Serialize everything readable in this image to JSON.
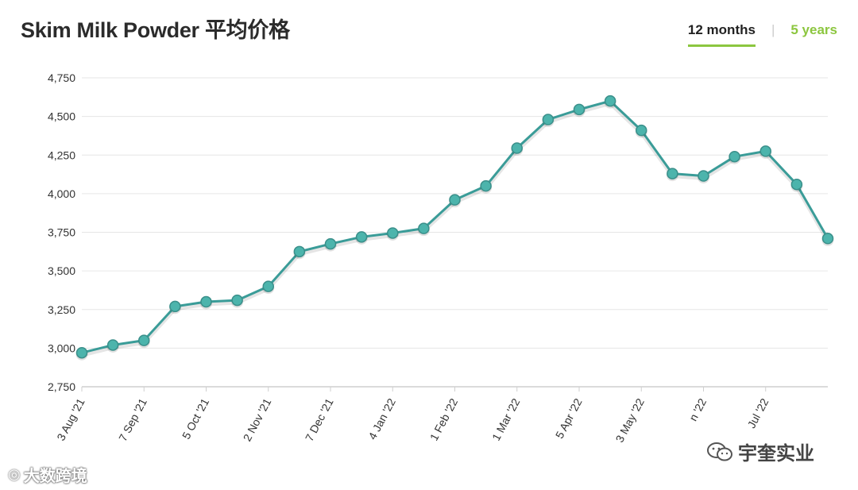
{
  "title": "Skim Milk Powder 平均价格",
  "toggle": {
    "active": "12 months",
    "other": "5 years"
  },
  "watermarks": {
    "left": "大数跨境",
    "right": "宇奎实业",
    "left_icon": "weibo-logo-icon",
    "right_icon": "wechat-logo-icon"
  },
  "colors": {
    "line": "#3a9c98",
    "marker": "#4cb4ac",
    "marker_stroke": "#3a8f8a",
    "grid": "#e6e6e6",
    "accent": "#8cc63f"
  },
  "chart_data": {
    "type": "line",
    "title": "Skim Milk Powder 平均价格",
    "xlabel": "",
    "ylabel": "",
    "ylim": [
      2750,
      4750
    ],
    "yticks": [
      "2,750",
      "3,000",
      "3,250",
      "3,500",
      "3,750",
      "4,000",
      "4,250",
      "4,500",
      "4,750"
    ],
    "ytick_values": [
      2750,
      3000,
      3250,
      3500,
      3750,
      4000,
      4250,
      4500,
      4750
    ],
    "xtick_labels": [
      "3 Aug '21",
      "7 Sep '21",
      "5 Oct '21",
      "2 Nov '21",
      "7 Dec '21",
      "4 Jan '22",
      "1 Feb '22",
      "1 Mar '22",
      "5 Apr '22",
      "3 May '22",
      "n '22",
      "Jul '22"
    ],
    "xtick_index": [
      0,
      2,
      4,
      6,
      8,
      10,
      12,
      14,
      16,
      18,
      20,
      22
    ],
    "grid": true,
    "legend": "none",
    "series": [
      {
        "values": [
          2970,
          3020,
          3050,
          3270,
          3300,
          3310,
          3400,
          3625,
          3675,
          3720,
          3745,
          3775,
          3960,
          4050,
          4295,
          4480,
          4545,
          4600,
          4410,
          4130,
          4115,
          4240,
          4275,
          4060,
          3710
        ]
      }
    ]
  }
}
